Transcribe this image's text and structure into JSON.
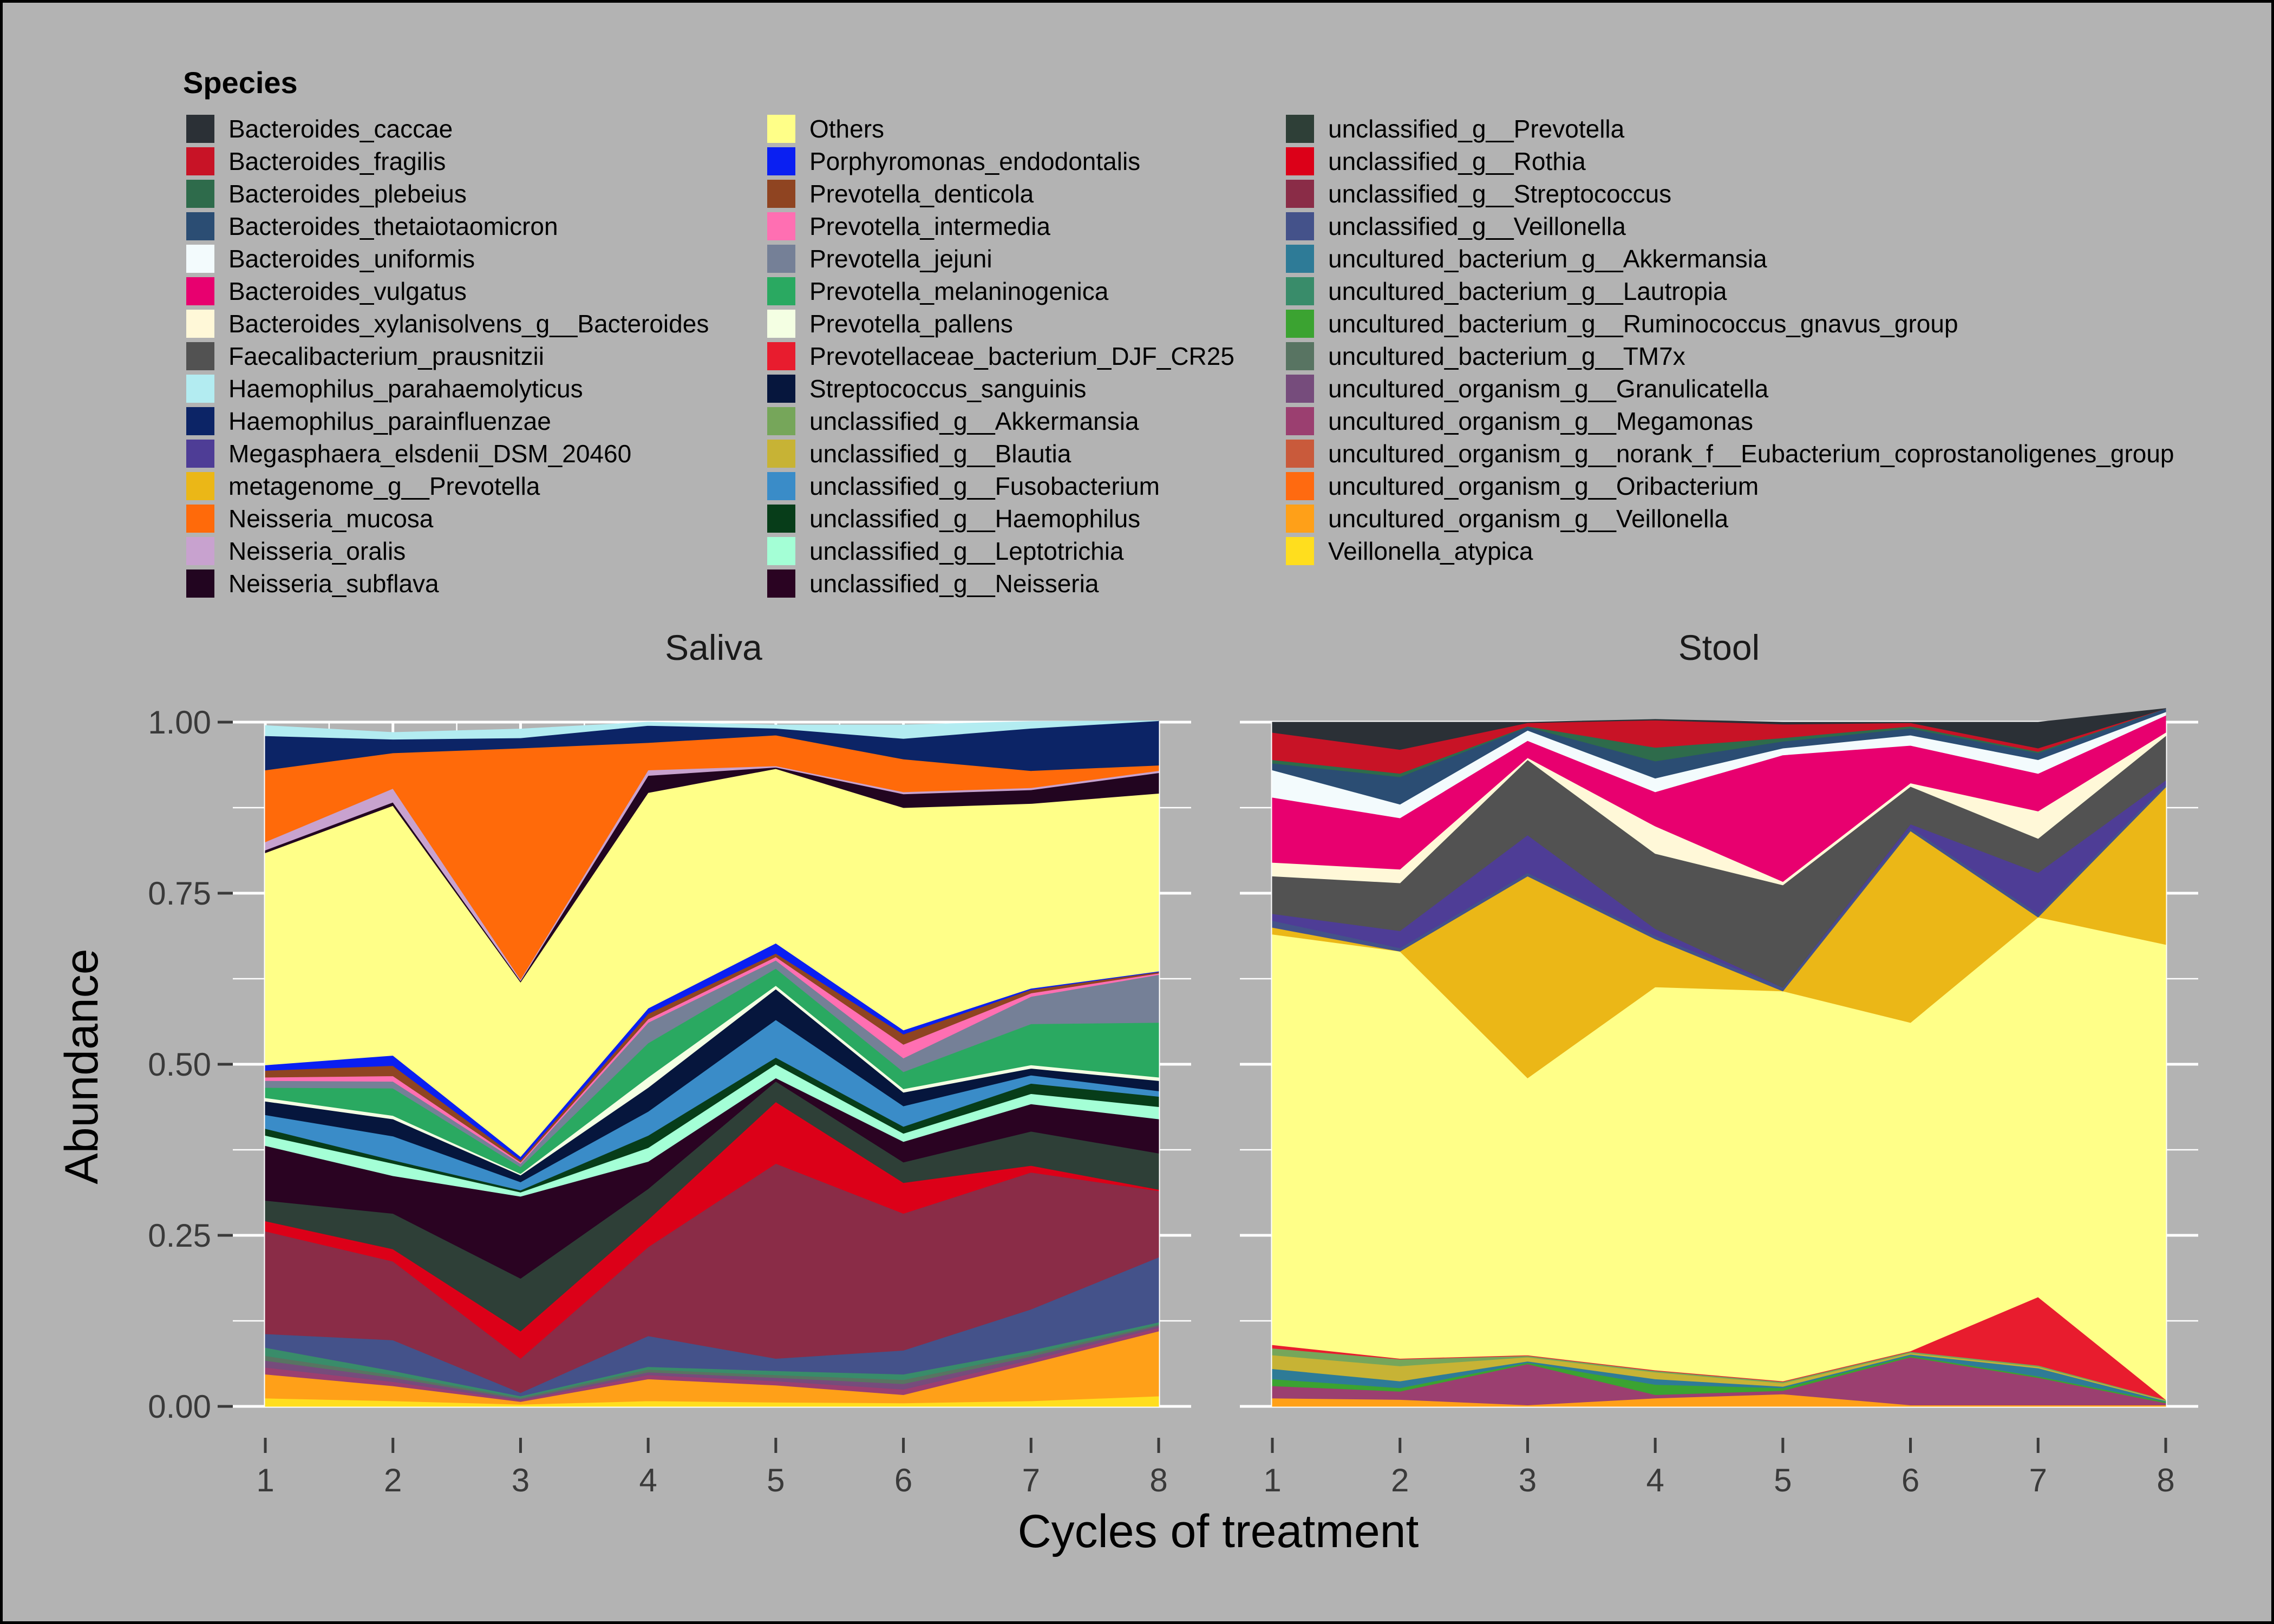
{
  "chart_data": {
    "type": "area",
    "stacked": true,
    "legend_title": "Species",
    "xlabel": "Cycles of treatment",
    "ylabel": "Abundance",
    "x": [
      1,
      2,
      3,
      4,
      5,
      6,
      7,
      8
    ],
    "xticks": [
      "1",
      "2",
      "3",
      "4",
      "5",
      "6",
      "7",
      "8"
    ],
    "ylim": [
      0,
      1
    ],
    "yticks": [
      "0.00",
      "0.25",
      "0.50",
      "0.75",
      "1.00"
    ],
    "grid": true,
    "legend_position": "top",
    "background": "#b3b3b3",
    "species": [
      {
        "name": "Bacteroides_caccae",
        "color": "#2b3036"
      },
      {
        "name": "Bacteroides_fragilis",
        "color": "#c81326"
      },
      {
        "name": "Bacteroides_plebeius",
        "color": "#2e6b4b"
      },
      {
        "name": "Bacteroides_thetaiotaomicron",
        "color": "#2b4d73"
      },
      {
        "name": "Bacteroides_uniformis",
        "color": "#f3fbfd"
      },
      {
        "name": "Bacteroides_vulgatus",
        "color": "#e8006f"
      },
      {
        "name": "Bacteroides_xylanisolvens_g__Bacteroides",
        "color": "#fff8d8"
      },
      {
        "name": "Faecalibacterium_prausnitzii",
        "color": "#525252"
      },
      {
        "name": "Haemophilus_parahaemolyticus",
        "color": "#b3ecf1"
      },
      {
        "name": "Haemophilus_parainfluenzae",
        "color": "#0c2466"
      },
      {
        "name": "Megasphaera_elsdenii_DSM_20460",
        "color": "#4e3d96"
      },
      {
        "name": "metagenome_g__Prevotella",
        "color": "#ebb717"
      },
      {
        "name": "Neisseria_mucosa",
        "color": "#ff6a0a"
      },
      {
        "name": "Neisseria_oralis",
        "color": "#c8a2cf"
      },
      {
        "name": "Neisseria_subflava",
        "color": "#220520"
      },
      {
        "name": "Others",
        "color": "#ffff88"
      },
      {
        "name": "Porphyromonas_endodontalis",
        "color": "#0a1ff2"
      },
      {
        "name": "Prevotella_denticola",
        "color": "#8f4421"
      },
      {
        "name": "Prevotella_intermedia",
        "color": "#ff6fb2"
      },
      {
        "name": "Prevotella_jejuni",
        "color": "#758097"
      },
      {
        "name": "Prevotella_melaninogenica",
        "color": "#2aa961"
      },
      {
        "name": "Prevotella_pallens",
        "color": "#f4ffe3"
      },
      {
        "name": "Prevotellaceae_bacterium_DJF_CR25",
        "color": "#e81c2e"
      },
      {
        "name": "Streptococcus_sanguinis",
        "color": "#06163d"
      },
      {
        "name": "unclassified_g__Akkermansia",
        "color": "#76a65a"
      },
      {
        "name": "unclassified_g__Blautia",
        "color": "#c7b335"
      },
      {
        "name": "unclassified_g__Fusobacterium",
        "color": "#3a8cc8"
      },
      {
        "name": "unclassified_g__Haemophilus",
        "color": "#073d19"
      },
      {
        "name": "unclassified_g__Leptotrichia",
        "color": "#a4ffd6"
      },
      {
        "name": "unclassified_g__Neisseria",
        "color": "#2a0322"
      },
      {
        "name": "unclassified_g__Prevotella",
        "color": "#2e3f37"
      },
      {
        "name": "unclassified_g__Rothia",
        "color": "#dc0018"
      },
      {
        "name": "unclassified_g__Streptococcus",
        "color": "#8a2c47"
      },
      {
        "name": "unclassified_g__Veillonella",
        "color": "#44528a"
      },
      {
        "name": "uncultured_bacterium_g__Akkermansia",
        "color": "#2e7b97"
      },
      {
        "name": "uncultured_bacterium_g__Lautropia",
        "color": "#398c6a"
      },
      {
        "name": "uncultured_bacterium_g__Ruminococcus_gnavus_group",
        "color": "#3ba331"
      },
      {
        "name": "uncultured_bacterium_g__TM7x",
        "color": "#587462"
      },
      {
        "name": "uncultured_organism_g__Granulicatella",
        "color": "#764c7c"
      },
      {
        "name": "uncultured_organism_g__Megamonas",
        "color": "#9b3f70"
      },
      {
        "name": "uncultured_organism_g__norank_f__Eubacterium_coprostanoligenes_group",
        "color": "#c95a3b"
      },
      {
        "name": "uncultured_organism_g__Oribacterium",
        "color": "#ff6a10"
      },
      {
        "name": "uncultured_organism_g__Veillonella",
        "color": "#ffa018"
      },
      {
        "name": "Veillonella_atypica",
        "color": "#ffde1e"
      }
    ],
    "panels": [
      {
        "title": "Saliva",
        "bands": [
          {
            "species": "Veillonella_atypica",
            "values": [
              0.012,
              0.008,
              0.003,
              0.008,
              0.006,
              0.005,
              0.008,
              0.015
            ]
          },
          {
            "species": "uncultured_organism_g__Veillonella",
            "values": [
              0.035,
              0.022,
              0.004,
              0.032,
              0.025,
              0.012,
              0.055,
              0.095
            ]
          },
          {
            "species": "uncultured_organism_g__Megamonas",
            "values": [
              0.01,
              0.006,
              0.002,
              0.006,
              0.006,
              0.008,
              0.005,
              0.005
            ]
          },
          {
            "species": "uncultured_organism_g__Granulicatella",
            "values": [
              0.01,
              0.006,
              0.002,
              0.004,
              0.005,
              0.008,
              0.005,
              0.003
            ]
          },
          {
            "species": "uncultured_bacterium_g__TM7x",
            "values": [
              0.007,
              0.004,
              0.002,
              0.004,
              0.004,
              0.006,
              0.004,
              0.002
            ]
          },
          {
            "species": "uncultured_bacterium_g__Lautropia",
            "values": [
              0.012,
              0.006,
              0.002,
              0.004,
              0.006,
              0.008,
              0.005,
              0.003
            ]
          },
          {
            "species": "unclassified_g__Veillonella",
            "values": [
              0.02,
              0.045,
              0.005,
              0.045,
              0.018,
              0.035,
              0.06,
              0.095
            ]
          },
          {
            "species": "unclassified_g__Streptococcus",
            "values": [
              0.15,
              0.115,
              0.05,
              0.13,
              0.285,
              0.2,
              0.2,
              0.097
            ]
          },
          {
            "species": "unclassified_g__Rothia",
            "values": [
              0.015,
              0.018,
              0.04,
              0.04,
              0.09,
              0.045,
              0.01,
              0.002
            ]
          },
          {
            "species": "unclassified_g__Prevotella",
            "values": [
              0.03,
              0.052,
              0.077,
              0.045,
              0.03,
              0.03,
              0.05,
              0.053
            ]
          },
          {
            "species": "unclassified_g__Neisseria",
            "values": [
              0.08,
              0.055,
              0.12,
              0.04,
              0.005,
              0.03,
              0.04,
              0.05
            ]
          },
          {
            "species": "unclassified_g__Leptotrichia",
            "values": [
              0.015,
              0.018,
              0.006,
              0.02,
              0.02,
              0.012,
              0.015,
              0.018
            ]
          },
          {
            "species": "unclassified_g__Haemophilus",
            "values": [
              0.01,
              0.005,
              0.003,
              0.018,
              0.01,
              0.01,
              0.015,
              0.015
            ]
          },
          {
            "species": "unclassified_g__Fusobacterium",
            "values": [
              0.02,
              0.035,
              0.012,
              0.035,
              0.055,
              0.03,
              0.012,
              0.008
            ]
          },
          {
            "species": "Streptococcus_sanguinis",
            "values": [
              0.02,
              0.025,
              0.01,
              0.035,
              0.045,
              0.02,
              0.01,
              0.015
            ]
          },
          {
            "species": "Prevotella_pallens",
            "values": [
              0.005,
              0.005,
              0.002,
              0.015,
              0.005,
              0.005,
              0.005,
              0.005
            ]
          },
          {
            "species": "Prevotella_melaninogenica",
            "values": [
              0.015,
              0.04,
              0.01,
              0.05,
              0.025,
              0.025,
              0.06,
              0.08
            ]
          },
          {
            "species": "Prevotella_jejuni",
            "values": [
              0.01,
              0.01,
              0.005,
              0.03,
              0.012,
              0.02,
              0.04,
              0.07
            ]
          },
          {
            "species": "Prevotella_intermedia",
            "values": [
              0.005,
              0.008,
              0.002,
              0.005,
              0.005,
              0.02,
              0.005,
              0.002
            ]
          },
          {
            "species": "Prevotella_denticola",
            "values": [
              0.01,
              0.015,
              0.003,
              0.008,
              0.005,
              0.015,
              0.005,
              0.002
            ]
          },
          {
            "species": "Porphyromonas_endodontalis",
            "values": [
              0.008,
              0.015,
              0.005,
              0.008,
              0.015,
              0.006,
              0.002,
              0.001
            ]
          },
          {
            "species": "Others",
            "values": [
              0.31,
              0.365,
              0.255,
              0.315,
              0.255,
              0.325,
              0.27,
              0.26
            ]
          },
          {
            "species": "Neisseria_subflava",
            "values": [
              0.004,
              0.005,
              0.002,
              0.025,
              0.002,
              0.02,
              0.02,
              0.03
            ]
          },
          {
            "species": "Neisseria_oralis",
            "values": [
              0.012,
              0.02,
              0.002,
              0.008,
              0.002,
              0.003,
              0.003,
              0.003
            ]
          },
          {
            "species": "Neisseria_mucosa",
            "values": [
              0.105,
              0.052,
              0.338,
              0.04,
              0.045,
              0.048,
              0.025,
              0.008
            ]
          },
          {
            "species": "Haemophilus_parainfluenzae",
            "values": [
              0.05,
              0.02,
              0.015,
              0.025,
              0.01,
              0.03,
              0.062,
              0.065
            ]
          },
          {
            "species": "Haemophilus_parahaemolyticus",
            "values": [
              0.015,
              0.01,
              0.013,
              0.005,
              0.005,
              0.02,
              0.01,
              0.0
            ]
          }
        ]
      },
      {
        "title": "Stool",
        "bands": [
          {
            "species": "uncultured_organism_g__Veillonella",
            "values": [
              0.012,
              0.01,
              0.002,
              0.012,
              0.018,
              0.002,
              0.002,
              0.002
            ]
          },
          {
            "species": "uncultured_organism_g__Megamonas",
            "values": [
              0.018,
              0.012,
              0.06,
              0.005,
              0.005,
              0.07,
              0.04,
              0.003
            ]
          },
          {
            "species": "uncultured_bacterium_g__Ruminococcus_gnavus_group",
            "values": [
              0.01,
              0.005,
              0.002,
              0.015,
              0.004,
              0.002,
              0.002,
              0.002
            ]
          },
          {
            "species": "uncultured_bacterium_g__Akkermansia",
            "values": [
              0.015,
              0.01,
              0.002,
              0.008,
              0.002,
              0.002,
              0.012,
              0.001
            ]
          },
          {
            "species": "unclassified_g__Blautia",
            "values": [
              0.02,
              0.022,
              0.006,
              0.01,
              0.005,
              0.002,
              0.002,
              0.001
            ]
          },
          {
            "species": "unclassified_g__Akkermansia",
            "values": [
              0.01,
              0.01,
              0.002,
              0.002,
              0.002,
              0.002,
              0.002,
              0.001
            ]
          },
          {
            "species": "Prevotellaceae_bacterium_DJF_CR25",
            "values": [
              0.005,
              0.001,
              0.001,
              0.001,
              0.001,
              0.001,
              0.1,
              0.0
            ]
          },
          {
            "species": "Others",
            "values": [
              0.6,
              0.595,
              0.405,
              0.56,
              0.57,
              0.48,
              0.555,
              0.665
            ]
          },
          {
            "species": "metagenome_g__Prevotella",
            "values": [
              0.01,
              0.0,
              0.295,
              0.07,
              0.0,
              0.28,
              0.0,
              0.23
            ]
          },
          {
            "species": "unclassified_g__Veillonella",
            "values": [
              0.01,
              0.005,
              0.005,
              0.005,
              0.005,
              0.005,
              0.005,
              0.005
            ]
          },
          {
            "species": "Megasphaera_elsdenii_DSM_20460",
            "values": [
              0.01,
              0.025,
              0.055,
              0.01,
              0.0,
              0.005,
              0.06,
              0.005
            ]
          },
          {
            "species": "Faecalibacterium_prausnitzii",
            "values": [
              0.055,
              0.07,
              0.11,
              0.11,
              0.15,
              0.055,
              0.05,
              0.065
            ]
          },
          {
            "species": "Bacteroides_xylanisolvens_g__Bacteroides",
            "values": [
              0.02,
              0.02,
              0.003,
              0.04,
              0.005,
              0.005,
              0.04,
              0.005
            ]
          },
          {
            "species": "Bacteroides_vulgatus",
            "values": [
              0.095,
              0.075,
              0.025,
              0.05,
              0.185,
              0.055,
              0.055,
              0.025
            ]
          },
          {
            "species": "Bacteroides_uniformis",
            "values": [
              0.04,
              0.02,
              0.015,
              0.02,
              0.01,
              0.015,
              0.02,
              0.005
            ]
          },
          {
            "species": "Bacteroides_thetaiotaomicron",
            "values": [
              0.01,
              0.04,
              0.005,
              0.025,
              0.01,
              0.01,
              0.01,
              0.005
            ]
          },
          {
            "species": "Bacteroides_plebeius",
            "values": [
              0.005,
              0.005,
              0.001,
              0.02,
              0.005,
              0.003,
              0.002,
              0.0
            ]
          },
          {
            "species": "Bacteroides_fragilis",
            "values": [
              0.04,
              0.035,
              0.005,
              0.04,
              0.02,
              0.005,
              0.005,
              0.0
            ]
          },
          {
            "species": "Bacteroides_caccae",
            "values": [
              0.015,
              0.04,
              0.001,
              0.001,
              0.003,
              0.001,
              0.038,
              0.0
            ]
          }
        ]
      }
    ]
  }
}
